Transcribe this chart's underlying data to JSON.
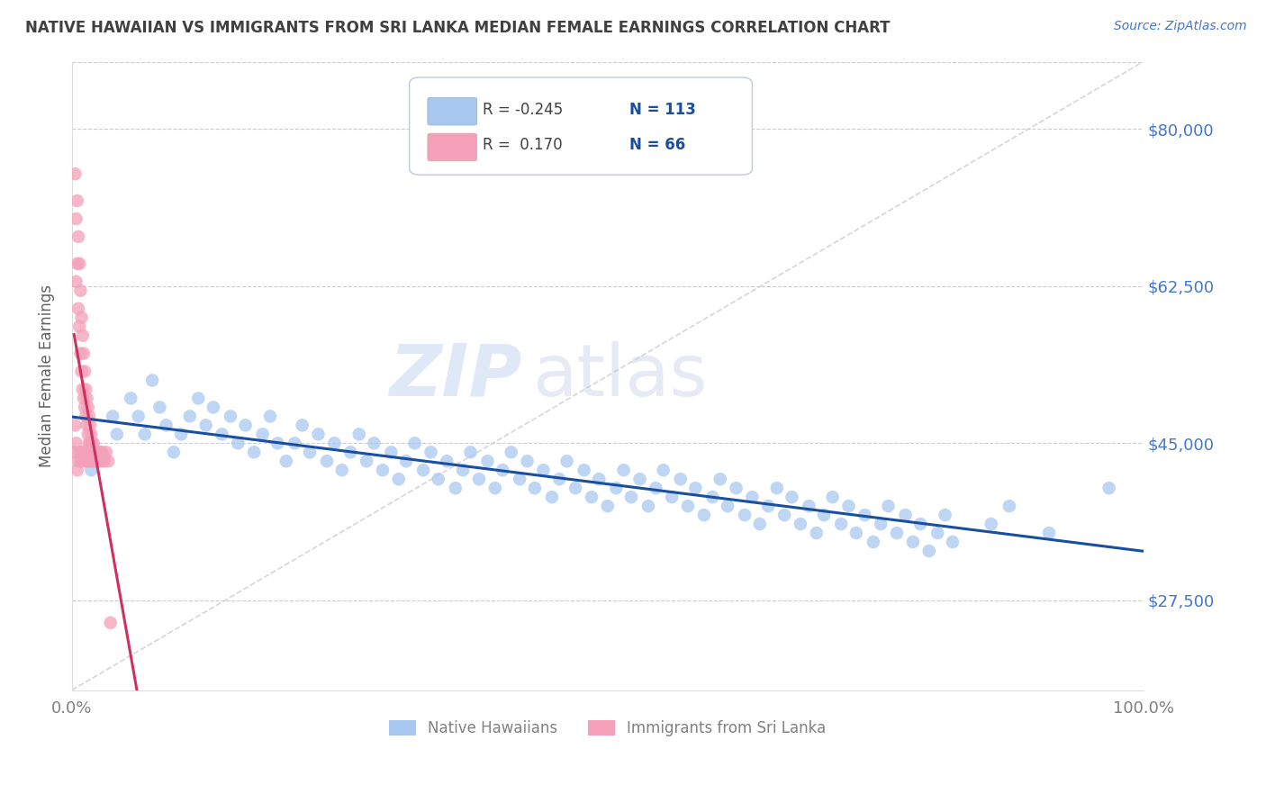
{
  "title": "NATIVE HAWAIIAN VS IMMIGRANTS FROM SRI LANKA MEDIAN FEMALE EARNINGS CORRELATION CHART",
  "source_text": "Source: ZipAtlas.com",
  "ylabel": "Median Female Earnings",
  "xlim": [
    0.0,
    1.0
  ],
  "ylim": [
    17500,
    87500
  ],
  "xtick_positions": [
    0.0,
    1.0
  ],
  "xtick_labels": [
    "0.0%",
    "100.0%"
  ],
  "ytick_values": [
    27500,
    45000,
    62500,
    80000
  ],
  "ytick_labels": [
    "$27,500",
    "$45,000",
    "$62,500",
    "$80,000"
  ],
  "legend_labels": [
    "Native Hawaiians",
    "Immigrants from Sri Lanka"
  ],
  "blue_color": "#A8C8F0",
  "pink_color": "#F4A0B8",
  "blue_line_color": "#1A4FA0",
  "pink_line_color": "#D03060",
  "blue_r": "-0.245",
  "blue_n": "113",
  "pink_r": "0.170",
  "pink_n": "66",
  "watermark_zip": "ZIP",
  "watermark_atlas": "atlas",
  "title_color": "#404040",
  "axis_label_color": "#606060",
  "tick_color": "#808080",
  "right_tick_color": "#4477CC",
  "blue_scatter_x": [
    0.018,
    0.025,
    0.03,
    0.038,
    0.042,
    0.055,
    0.062,
    0.068,
    0.075,
    0.082,
    0.088,
    0.095,
    0.102,
    0.11,
    0.118,
    0.125,
    0.132,
    0.14,
    0.148,
    0.155,
    0.162,
    0.17,
    0.178,
    0.185,
    0.192,
    0.2,
    0.208,
    0.215,
    0.222,
    0.23,
    0.238,
    0.245,
    0.252,
    0.26,
    0.268,
    0.275,
    0.282,
    0.29,
    0.298,
    0.305,
    0.312,
    0.32,
    0.328,
    0.335,
    0.342,
    0.35,
    0.358,
    0.365,
    0.372,
    0.38,
    0.388,
    0.395,
    0.402,
    0.41,
    0.418,
    0.425,
    0.432,
    0.44,
    0.448,
    0.455,
    0.462,
    0.47,
    0.478,
    0.485,
    0.492,
    0.5,
    0.508,
    0.515,
    0.522,
    0.53,
    0.538,
    0.545,
    0.552,
    0.56,
    0.568,
    0.575,
    0.582,
    0.59,
    0.598,
    0.605,
    0.612,
    0.62,
    0.628,
    0.635,
    0.642,
    0.65,
    0.658,
    0.665,
    0.672,
    0.68,
    0.688,
    0.695,
    0.702,
    0.71,
    0.718,
    0.725,
    0.732,
    0.74,
    0.748,
    0.755,
    0.762,
    0.77,
    0.778,
    0.785,
    0.792,
    0.8,
    0.808,
    0.815,
    0.822,
    0.858,
    0.875,
    0.912,
    0.968
  ],
  "blue_scatter_y": [
    42000,
    44000,
    43500,
    48000,
    46000,
    50000,
    48000,
    46000,
    52000,
    49000,
    47000,
    44000,
    46000,
    48000,
    50000,
    47000,
    49000,
    46000,
    48000,
    45000,
    47000,
    44000,
    46000,
    48000,
    45000,
    43000,
    45000,
    47000,
    44000,
    46000,
    43000,
    45000,
    42000,
    44000,
    46000,
    43000,
    45000,
    42000,
    44000,
    41000,
    43000,
    45000,
    42000,
    44000,
    41000,
    43000,
    40000,
    42000,
    44000,
    41000,
    43000,
    40000,
    42000,
    44000,
    41000,
    43000,
    40000,
    42000,
    39000,
    41000,
    43000,
    40000,
    42000,
    39000,
    41000,
    38000,
    40000,
    42000,
    39000,
    41000,
    38000,
    40000,
    42000,
    39000,
    41000,
    38000,
    40000,
    37000,
    39000,
    41000,
    38000,
    40000,
    37000,
    39000,
    36000,
    38000,
    40000,
    37000,
    39000,
    36000,
    38000,
    35000,
    37000,
    39000,
    36000,
    38000,
    35000,
    37000,
    34000,
    36000,
    38000,
    35000,
    37000,
    34000,
    36000,
    33000,
    35000,
    37000,
    34000,
    36000,
    38000,
    35000,
    40000
  ],
  "pink_scatter_x": [
    0.002,
    0.003,
    0.003,
    0.004,
    0.004,
    0.004,
    0.005,
    0.005,
    0.005,
    0.006,
    0.006,
    0.006,
    0.007,
    0.007,
    0.007,
    0.008,
    0.008,
    0.008,
    0.009,
    0.009,
    0.009,
    0.01,
    0.01,
    0.01,
    0.011,
    0.011,
    0.011,
    0.012,
    0.012,
    0.012,
    0.013,
    0.013,
    0.013,
    0.014,
    0.014,
    0.014,
    0.015,
    0.015,
    0.015,
    0.016,
    0.016,
    0.016,
    0.017,
    0.017,
    0.017,
    0.018,
    0.018,
    0.018,
    0.019,
    0.019,
    0.019,
    0.02,
    0.02,
    0.021,
    0.021,
    0.022,
    0.023,
    0.024,
    0.025,
    0.026,
    0.027,
    0.028,
    0.03,
    0.032,
    0.034,
    0.036
  ],
  "pink_scatter_y": [
    44000,
    75000,
    47000,
    70000,
    63000,
    45000,
    72000,
    65000,
    42000,
    68000,
    60000,
    43000,
    65000,
    58000,
    44000,
    62000,
    55000,
    43000,
    59000,
    53000,
    44000,
    57000,
    51000,
    43000,
    55000,
    50000,
    44000,
    53000,
    49000,
    43000,
    51000,
    48000,
    44000,
    50000,
    47000,
    43000,
    49000,
    46000,
    44000,
    48000,
    45000,
    43000,
    47000,
    45000,
    44000,
    46000,
    44000,
    43000,
    45000,
    44000,
    43000,
    45000,
    44000,
    44000,
    43000,
    44000,
    43000,
    44000,
    43000,
    44000,
    43000,
    44000,
    43000,
    44000,
    43000,
    25000
  ]
}
